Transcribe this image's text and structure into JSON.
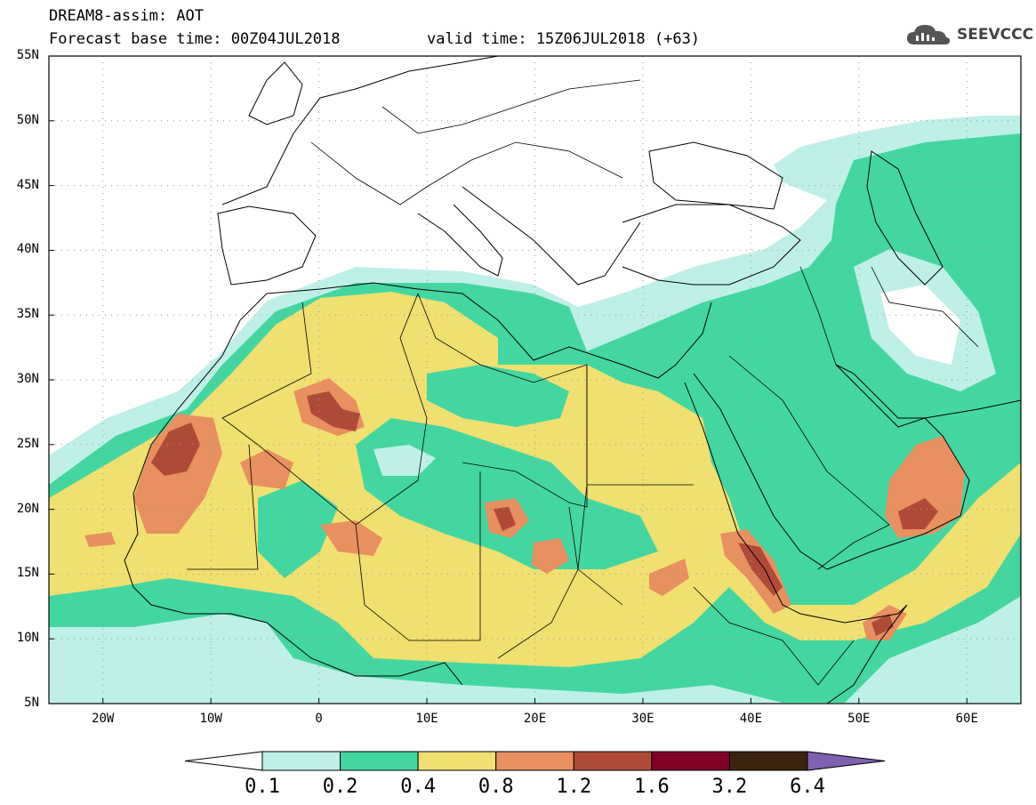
{
  "header": {
    "line1": "DREAM8-assim: AOT",
    "line2": "Forecast base time: 00Z04JUL2018",
    "valid": "valid time: 15Z06JUL2018 (+63)",
    "logo_text": "SEEVCCC"
  },
  "map": {
    "projection": "equirectangular",
    "lon_range": [
      -25,
      65
    ],
    "lat_range": [
      5,
      55
    ],
    "lat_labels": [
      "55N",
      "50N",
      "45N",
      "40N",
      "35N",
      "30N",
      "25N",
      "20N",
      "15N",
      "10N",
      "5N"
    ],
    "lat_values": [
      55,
      50,
      45,
      40,
      35,
      30,
      25,
      20,
      15,
      10,
      5
    ],
    "lon_labels": [
      "20W",
      "10W",
      "0",
      "10E",
      "20E",
      "30E",
      "40E",
      "50E",
      "60E"
    ],
    "lon_values": [
      -20,
      -10,
      0,
      10,
      20,
      30,
      40,
      50,
      60
    ],
    "grid": "dotted"
  },
  "colorbar": {
    "labels": [
      "0.1",
      "0.2",
      "0.4",
      "0.8",
      "1.2",
      "1.6",
      "3.2",
      "6.4"
    ],
    "colors": [
      "#bff0e8",
      "#44d6a0",
      "#f0e070",
      "#e89060",
      "#b04a38",
      "#800028",
      "#3a2410"
    ],
    "under_color": "#ffffff",
    "over_color": "#8060b0"
  }
}
